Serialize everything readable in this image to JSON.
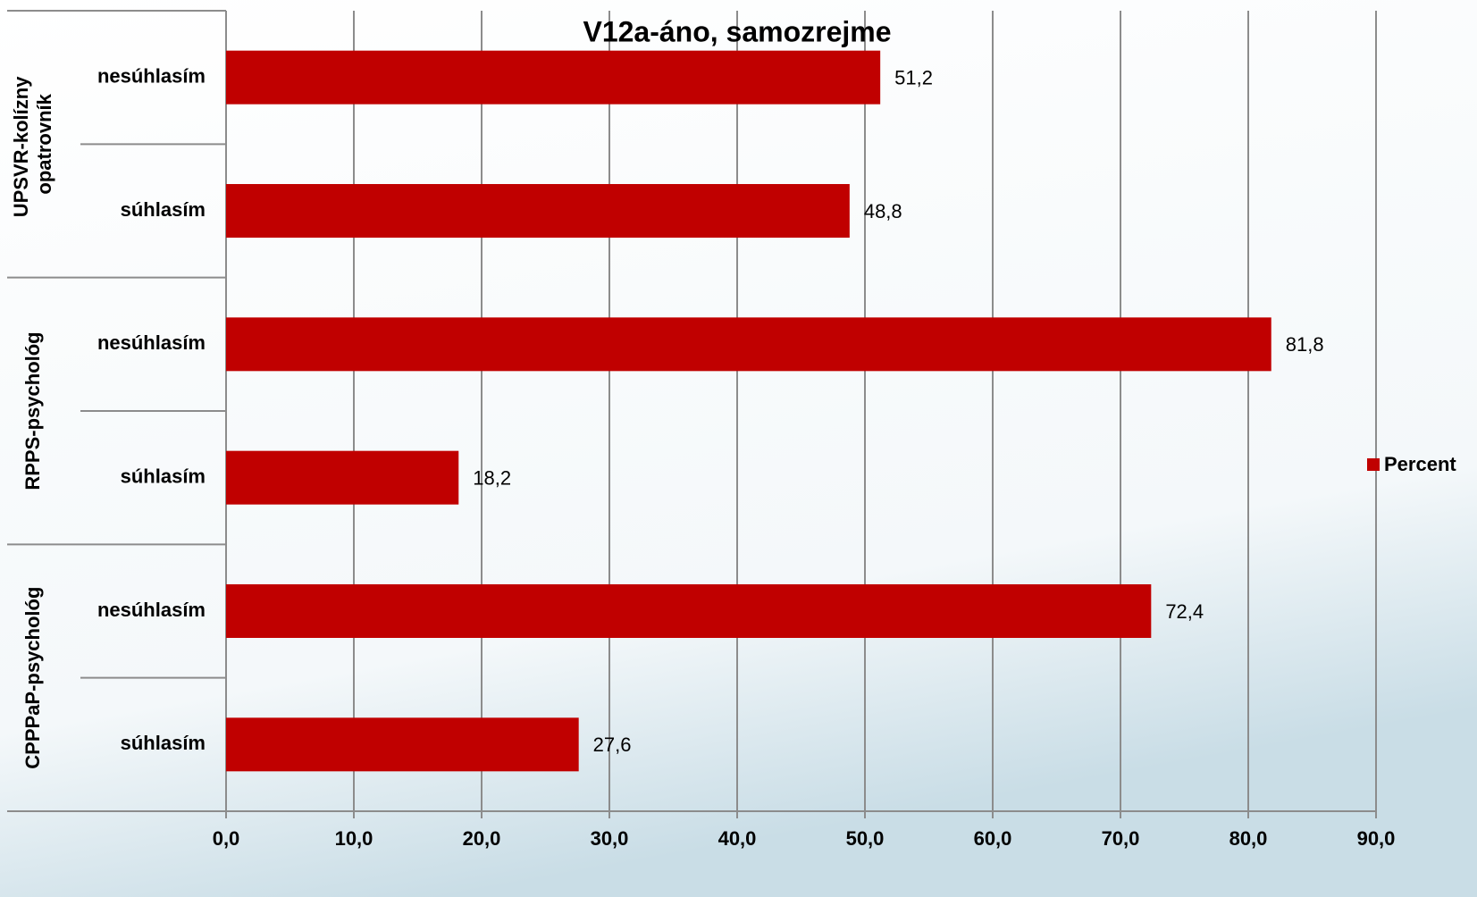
{
  "chart_data": {
    "type": "bar",
    "orientation": "horizontal",
    "title": "V12a-áno, samozrejme",
    "groups": [
      "UPSVR-kolízny opatrovník",
      "RPPS-psychológ",
      "CPPPaP-psychológ"
    ],
    "categories": [
      "nesúhlasím",
      "súhlasím",
      "nesúhlasím",
      "súhlasím",
      "nesúhlasím",
      "súhlasím"
    ],
    "series": [
      {
        "name": "Percent",
        "color": "#c00000",
        "values": [
          51.2,
          48.8,
          81.8,
          18.2,
          72.4,
          27.6
        ],
        "value_labels": [
          "51,2",
          "48,8",
          "81,8",
          "18,2",
          "72,4",
          "27,6"
        ]
      }
    ],
    "xlim": [
      0,
      90
    ],
    "xticks": [
      {
        "value": 0,
        "label": "0,0"
      },
      {
        "value": 10,
        "label": "10,0"
      },
      {
        "value": 20,
        "label": "20,0"
      },
      {
        "value": 30,
        "label": "30,0"
      },
      {
        "value": 40,
        "label": "40,0"
      },
      {
        "value": 50,
        "label": "50,0"
      },
      {
        "value": 60,
        "label": "60,0"
      },
      {
        "value": 70,
        "label": "70,0"
      },
      {
        "value": 80,
        "label": "80,0"
      },
      {
        "value": 90,
        "label": "90,0"
      }
    ],
    "grid": true,
    "legend": "right"
  }
}
